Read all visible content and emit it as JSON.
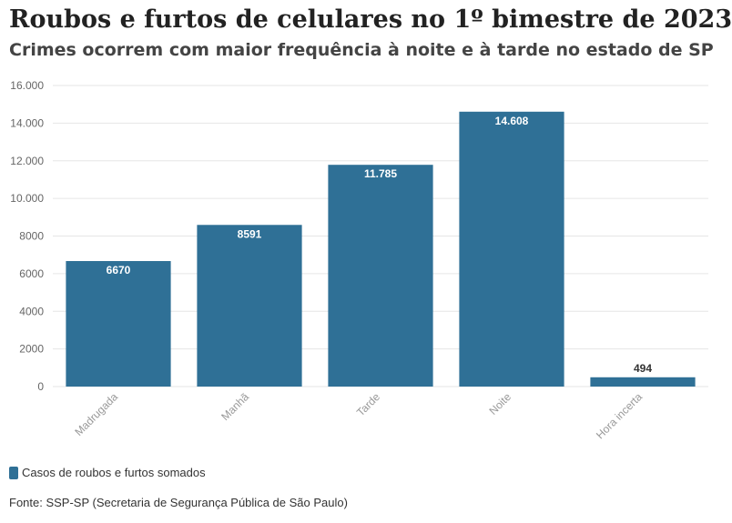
{
  "header": {
    "title": "Roubos e furtos de celulares no 1º bimestre de 2023",
    "subtitle": "Crimes ocorrem com maior frequência à noite e à tarde no estado de SP"
  },
  "colors": {
    "bar": "#2f7096",
    "grid": "#e6e6e6",
    "axis_text": "#666666"
  },
  "chart_data": {
    "type": "bar",
    "categories": [
      "Madrugada",
      "Manhã",
      "Tarde",
      "Noite",
      "Hora incerta"
    ],
    "series": [
      {
        "name": "Casos de roubos e furtos somados",
        "values": [
          6670,
          8591,
          11785,
          14608,
          494
        ]
      }
    ],
    "data_labels": [
      "6670",
      "8591",
      "11.785",
      "14.608",
      "494"
    ],
    "yticks": [
      0,
      2000,
      4000,
      6000,
      8000,
      10000,
      12000,
      14000,
      16000
    ],
    "ytick_labels": [
      "0",
      "2000",
      "4000",
      "6000",
      "8000",
      "10.000",
      "12.000",
      "14.000",
      "16.000"
    ],
    "ylim": [
      0,
      16000
    ],
    "grid": true,
    "legend_position": "bottom-left"
  },
  "legend": {
    "label": "Casos de roubos e furtos somados"
  },
  "footer": {
    "source": "Fonte: SSP-SP (Secretaria de Segurança Pública de São Paulo)"
  }
}
